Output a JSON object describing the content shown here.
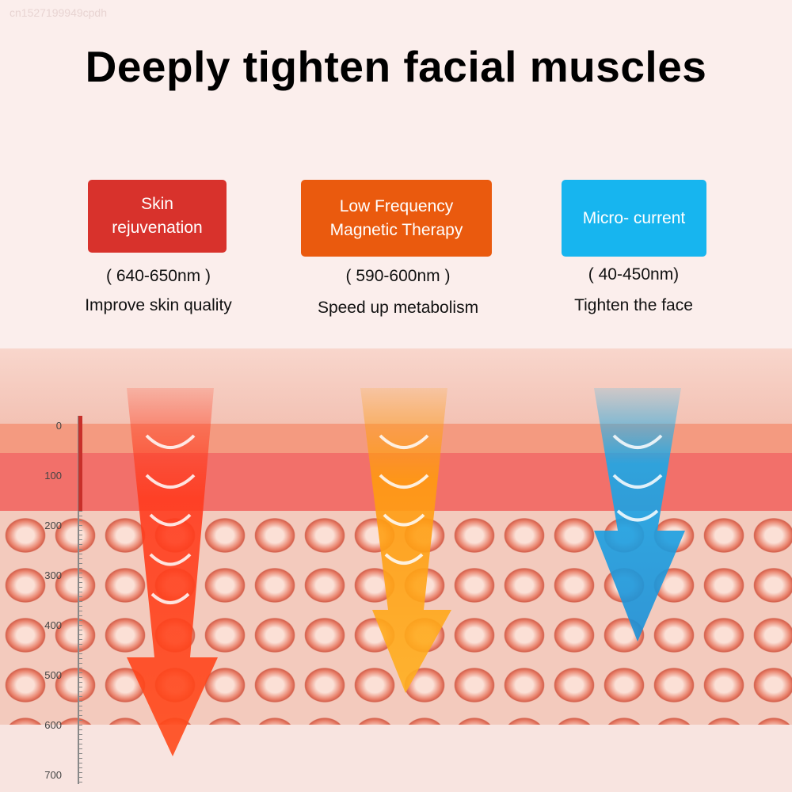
{
  "watermark": "cn1527199949cpdh",
  "title": "Deeply tighten facial muscles",
  "features": [
    {
      "label": "Skin rejuvenation",
      "range": "( 640-650nm )",
      "benefit": "Improve skin quality",
      "color": "#d8322c"
    },
    {
      "label": "Low Frequency Magnetic Therapy",
      "range": "( 590-600nm )",
      "benefit": "Speed up metabolism",
      "color": "#ea5a0e"
    },
    {
      "label": "Micro- current",
      "range": "( 40-450nm)",
      "benefit": "Tighten the face",
      "color": "#17b5ef"
    }
  ],
  "scale": {
    "ticks": [
      "0",
      "100",
      "200",
      "300",
      "400",
      "500",
      "600",
      "700"
    ]
  }
}
